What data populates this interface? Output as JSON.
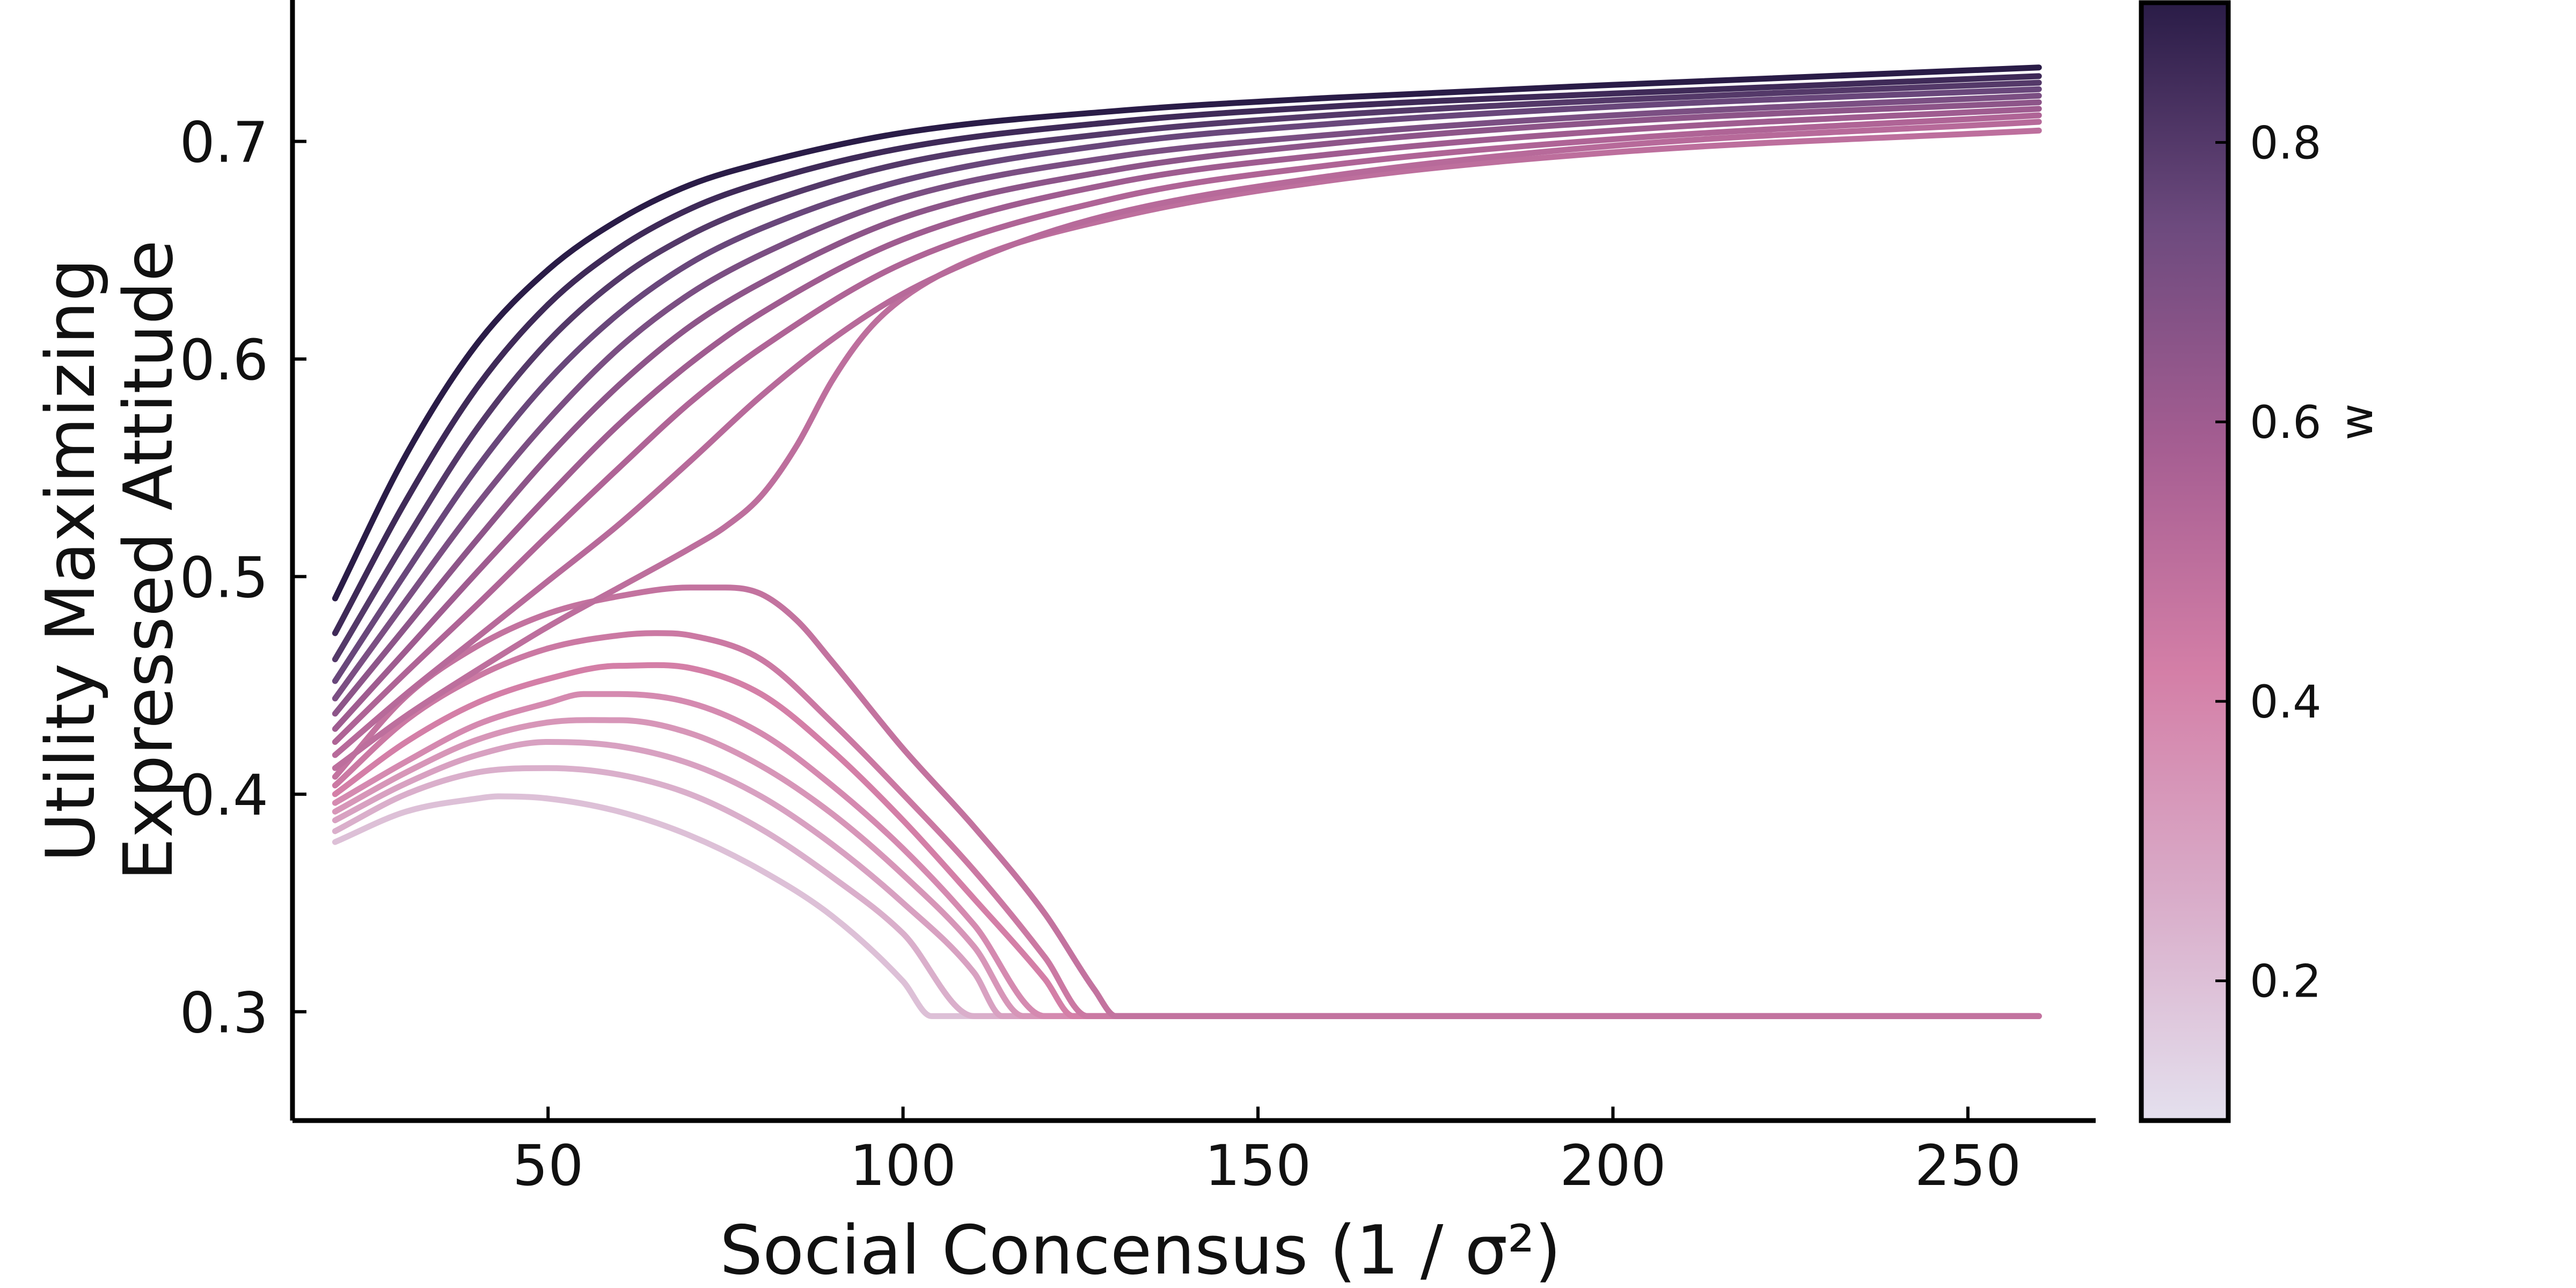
{
  "chart_data": {
    "type": "line",
    "xlabel": "Social Concensus (1 / σ²)",
    "ylabel_lines": [
      "Utility Maximizing",
      "Expressed Attitude"
    ],
    "xlim": [
      14,
      268
    ],
    "ylim": [
      0.25,
      0.765
    ],
    "xticks": [
      50,
      100,
      150,
      200,
      250
    ],
    "yticks": [
      0.3,
      0.4,
      0.5,
      0.6,
      0.7
    ],
    "grid": false,
    "colorbar": {
      "label": "w",
      "range": [
        0.1,
        0.9
      ],
      "ticks": [
        0.2,
        0.4,
        0.6,
        0.8
      ],
      "colors": [
        "#e4e0ee",
        "#d9acc9",
        "#d47fa7",
        "#a65e92",
        "#6d4a7e",
        "#2a1c47"
      ]
    },
    "x_range": [
      20,
      260
    ],
    "upper_series": [
      {
        "w": 0.9,
        "x": [
          20,
          30,
          40,
          50,
          60,
          70,
          80,
          100,
          130,
          160,
          200,
          260
        ],
        "y": [
          0.49,
          0.556,
          0.607,
          0.641,
          0.664,
          0.68,
          0.69,
          0.704,
          0.714,
          0.72,
          0.726,
          0.734
        ]
      },
      {
        "w": 0.85,
        "x": [
          20,
          30,
          40,
          50,
          60,
          70,
          80,
          100,
          130,
          160,
          200,
          260
        ],
        "y": [
          0.474,
          0.535,
          0.587,
          0.625,
          0.651,
          0.669,
          0.681,
          0.697,
          0.709,
          0.716,
          0.722,
          0.73
        ]
      },
      {
        "w": 0.8,
        "x": [
          20,
          30,
          40,
          50,
          60,
          70,
          80,
          100,
          130,
          160,
          200,
          260
        ],
        "y": [
          0.462,
          0.517,
          0.568,
          0.608,
          0.637,
          0.657,
          0.671,
          0.69,
          0.704,
          0.712,
          0.719,
          0.727
        ]
      },
      {
        "w": 0.75,
        "x": [
          20,
          30,
          40,
          50,
          60,
          70,
          80,
          100,
          130,
          160,
          200,
          260
        ],
        "y": [
          0.452,
          0.502,
          0.55,
          0.59,
          0.621,
          0.644,
          0.66,
          0.682,
          0.699,
          0.708,
          0.716,
          0.724
        ]
      },
      {
        "w": 0.7,
        "x": [
          20,
          30,
          40,
          50,
          60,
          70,
          80,
          100,
          130,
          160,
          200,
          260
        ],
        "y": [
          0.444,
          0.489,
          0.533,
          0.572,
          0.605,
          0.63,
          0.648,
          0.674,
          0.693,
          0.703,
          0.712,
          0.721
        ]
      },
      {
        "w": 0.65,
        "x": [
          20,
          30,
          40,
          50,
          60,
          70,
          80,
          100,
          130,
          160,
          200,
          260
        ],
        "y": [
          0.437,
          0.477,
          0.517,
          0.555,
          0.588,
          0.615,
          0.635,
          0.665,
          0.687,
          0.699,
          0.709,
          0.718
        ]
      },
      {
        "w": 0.6,
        "x": [
          20,
          30,
          40,
          50,
          60,
          70,
          80,
          100,
          130,
          160,
          200,
          260
        ],
        "y": [
          0.43,
          0.466,
          0.502,
          0.537,
          0.57,
          0.598,
          0.621,
          0.655,
          0.681,
          0.694,
          0.705,
          0.715
        ]
      },
      {
        "w": 0.55,
        "x": [
          20,
          30,
          40,
          50,
          60,
          70,
          80,
          100,
          130,
          160,
          200,
          260
        ],
        "y": [
          0.424,
          0.456,
          0.487,
          0.519,
          0.55,
          0.58,
          0.605,
          0.644,
          0.674,
          0.689,
          0.701,
          0.712
        ]
      },
      {
        "w": 0.52,
        "x": [
          20,
          30,
          40,
          50,
          60,
          70,
          80,
          90,
          100,
          115,
          130,
          160,
          200,
          260
        ],
        "y": [
          0.418,
          0.446,
          0.472,
          0.498,
          0.524,
          0.553,
          0.583,
          0.609,
          0.63,
          0.652,
          0.667,
          0.684,
          0.698,
          0.709
        ]
      },
      {
        "w": 0.5,
        "x": [
          20,
          30,
          40,
          50,
          60,
          70,
          75,
          80,
          85,
          90,
          95,
          100,
          110,
          130,
          160,
          200,
          260
        ],
        "y": [
          0.412,
          0.436,
          0.457,
          0.477,
          0.495,
          0.513,
          0.523,
          0.537,
          0.56,
          0.59,
          0.613,
          0.628,
          0.646,
          0.665,
          0.682,
          0.695,
          0.705
        ]
      }
    ],
    "lower_series": [
      {
        "w": 0.48,
        "x": [
          20,
          30,
          40,
          50,
          60,
          70,
          75,
          80,
          85,
          90,
          100,
          110,
          120,
          127,
          130,
          260
        ],
        "y": [
          0.408,
          0.445,
          0.468,
          0.483,
          0.491,
          0.495,
          0.495,
          0.492,
          0.48,
          0.461,
          0.421,
          0.385,
          0.345,
          0.31,
          0.298,
          0.298
        ]
      },
      {
        "w": 0.45,
        "x": [
          20,
          30,
          40,
          50,
          60,
          65,
          70,
          80,
          90,
          100,
          110,
          120,
          126,
          260
        ],
        "y": [
          0.404,
          0.434,
          0.454,
          0.467,
          0.473,
          0.474,
          0.473,
          0.462,
          0.433,
          0.4,
          0.365,
          0.325,
          0.298,
          0.298
        ]
      },
      {
        "w": 0.42,
        "x": [
          20,
          30,
          40,
          50,
          60,
          70,
          80,
          90,
          100,
          110,
          120,
          124,
          260
        ],
        "y": [
          0.4,
          0.424,
          0.442,
          0.453,
          0.459,
          0.458,
          0.446,
          0.42,
          0.388,
          0.352,
          0.315,
          0.298,
          0.298
        ]
      },
      {
        "w": 0.38,
        "x": [
          20,
          30,
          40,
          50,
          55,
          60,
          70,
          80,
          90,
          100,
          110,
          120,
          260
        ],
        "y": [
          0.396,
          0.415,
          0.432,
          0.442,
          0.446,
          0.446,
          0.442,
          0.428,
          0.404,
          0.375,
          0.34,
          0.298,
          0.298
        ]
      },
      {
        "w": 0.34,
        "x": [
          20,
          30,
          40,
          50,
          60,
          70,
          80,
          90,
          100,
          110,
          117,
          260
        ],
        "y": [
          0.392,
          0.41,
          0.425,
          0.433,
          0.434,
          0.428,
          0.413,
          0.391,
          0.363,
          0.33,
          0.298,
          0.298
        ]
      },
      {
        "w": 0.3,
        "x": [
          20,
          30,
          40,
          50,
          60,
          70,
          80,
          90,
          100,
          110,
          114,
          260
        ],
        "y": [
          0.388,
          0.405,
          0.418,
          0.424,
          0.422,
          0.414,
          0.399,
          0.377,
          0.35,
          0.318,
          0.298,
          0.298
        ]
      },
      {
        "w": 0.25,
        "x": [
          20,
          30,
          40,
          50,
          60,
          70,
          80,
          90,
          100,
          110,
          260
        ],
        "y": [
          0.383,
          0.4,
          0.41,
          0.412,
          0.409,
          0.4,
          0.384,
          0.362,
          0.336,
          0.298,
          0.298
        ]
      },
      {
        "w": 0.2,
        "x": [
          20,
          30,
          40,
          43,
          50,
          60,
          70,
          80,
          90,
          100,
          104,
          260
        ],
        "y": [
          0.378,
          0.392,
          0.398,
          0.399,
          0.398,
          0.392,
          0.381,
          0.365,
          0.344,
          0.314,
          0.298,
          0.298
        ]
      }
    ]
  }
}
